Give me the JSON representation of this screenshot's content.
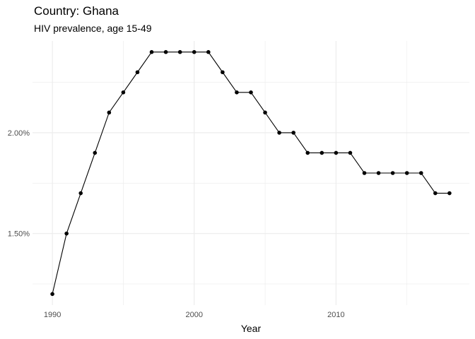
{
  "chart_data": {
    "type": "line",
    "title": "Country: Ghana",
    "subtitle": "HIV prevalence, age 15-49",
    "xlabel": "Year",
    "ylabel": "",
    "x": [
      1990,
      1991,
      1992,
      1993,
      1994,
      1995,
      1996,
      1997,
      1998,
      1999,
      2000,
      2001,
      2002,
      2003,
      2004,
      2005,
      2006,
      2007,
      2008,
      2009,
      2010,
      2011,
      2012,
      2013,
      2014,
      2015,
      2016,
      2017,
      2018
    ],
    "series": [
      {
        "values": [
          1.2,
          1.5,
          1.7,
          1.9,
          2.1,
          2.2,
          2.3,
          2.4,
          2.4,
          2.4,
          2.4,
          2.4,
          2.3,
          2.2,
          2.2,
          2.1,
          2.0,
          2.0,
          1.9,
          1.9,
          1.9,
          1.9,
          1.8,
          1.8,
          1.8,
          1.8,
          1.8,
          1.7,
          1.7
        ]
      }
    ],
    "xlim": [
      1988.6,
      2019.4
    ],
    "ylim": [
      1.145,
      2.455
    ],
    "xticks": [
      1990,
      2000,
      2010
    ],
    "xtick_labels": [
      "1990",
      "2000",
      "2010"
    ],
    "yticks": [
      1.5,
      2.0
    ],
    "ytick_labels": [
      "1.50%",
      "2.00%"
    ],
    "minor_xticks": [
      1995,
      2005,
      2015
    ],
    "minor_yticks": [
      1.25,
      1.75,
      2.25
    ],
    "grid": true,
    "line_color": "#000000",
    "grid_color": "#ebebeb"
  }
}
